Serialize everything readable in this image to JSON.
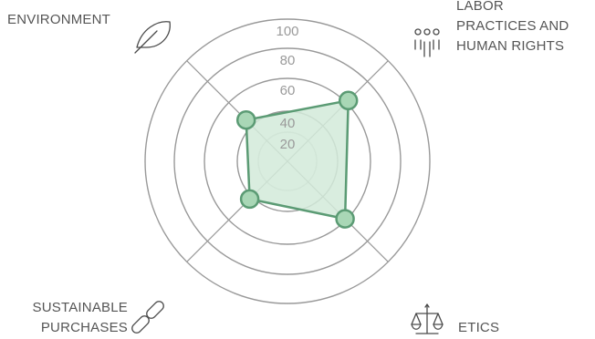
{
  "chart_data": {
    "type": "radar",
    "title": "",
    "axes": [
      {
        "label_lines": [
          "ENVIRONMENT"
        ],
        "icon": "leaf-icon"
      },
      {
        "label_lines": [
          "LABOR",
          "PRACTICES AND",
          "HUMAN RIGHTS"
        ],
        "icon": "people-icon"
      },
      {
        "label_lines": [
          "ETICS"
        ],
        "icon": "scales-icon"
      },
      {
        "label_lines": [
          "SUSTAINABLE",
          "PURCHASES"
        ],
        "icon": "chain-link-icon"
      }
    ],
    "ticks": [
      "20",
      "40",
      "60",
      "80",
      "100"
    ],
    "tick_values": [
      20,
      40,
      60,
      80,
      100
    ],
    "range": [
      0,
      100
    ],
    "series": [
      {
        "values": [
          45,
          62,
          59,
          42
        ]
      }
    ],
    "colors": {
      "grid": "#999999",
      "inner_grid": "#c9c9c9",
      "fill": "#d2ead9",
      "line": "#5b9b74",
      "marker": "#a9d7b6",
      "text": "#555555",
      "tick_text": "#9a9a9a"
    }
  }
}
